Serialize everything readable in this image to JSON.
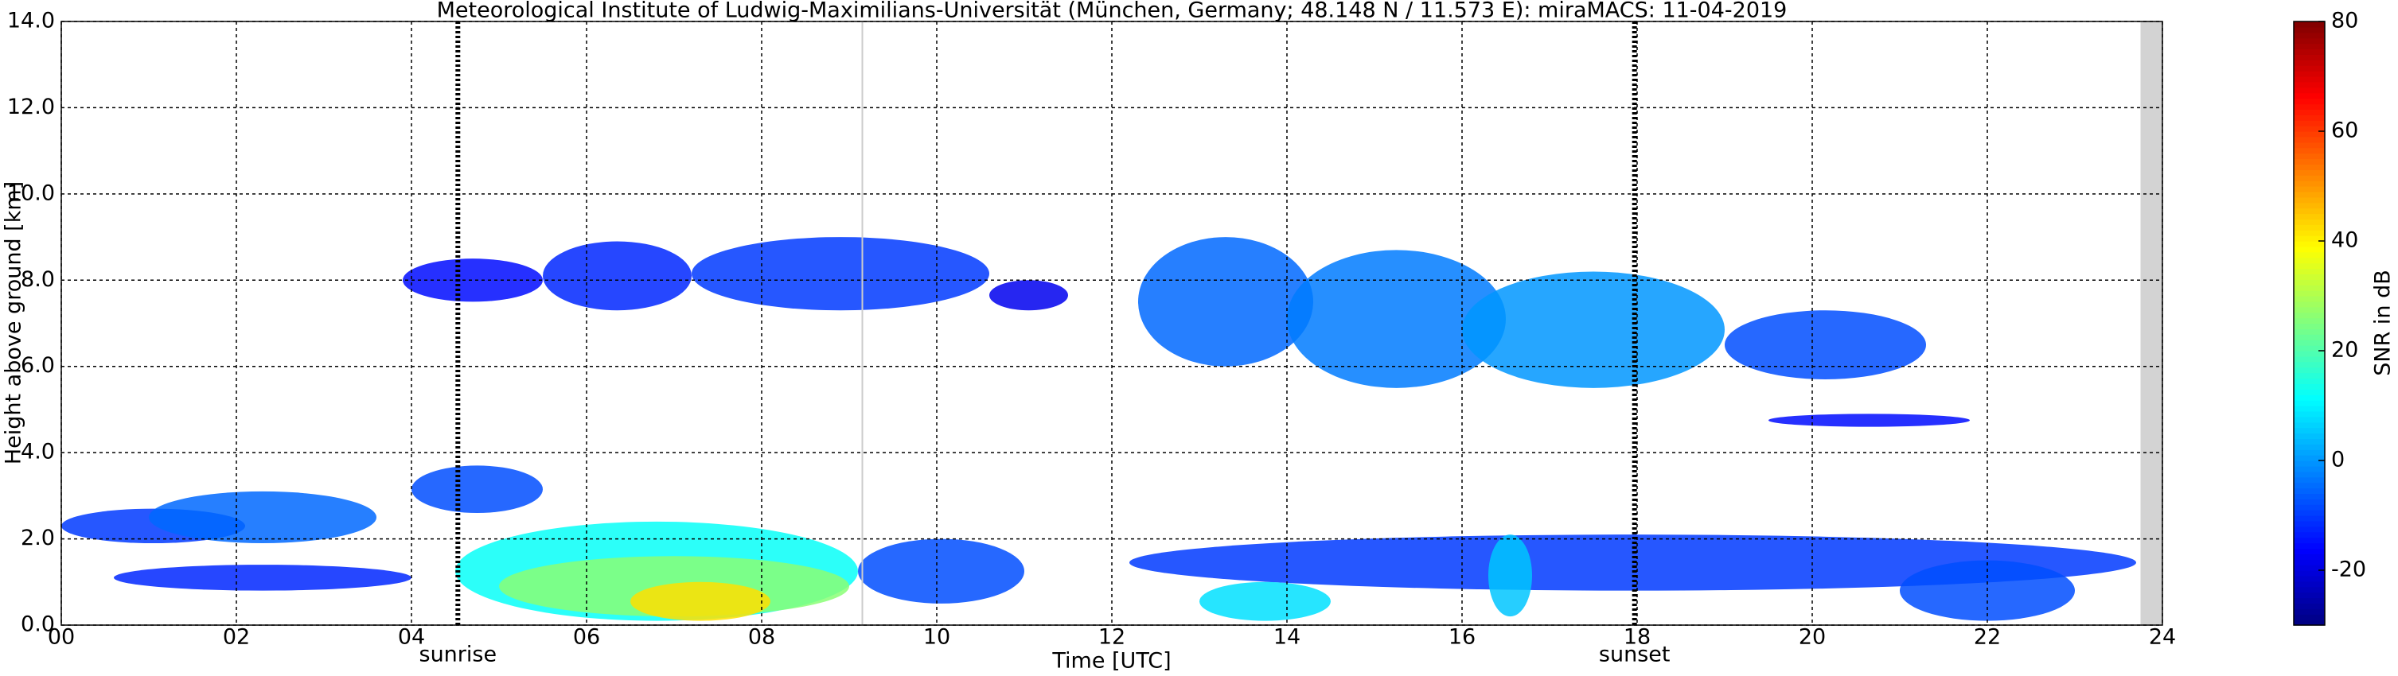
{
  "chart_data": {
    "type": "time-height",
    "title": "Meteorological Institute of Ludwig-Maximilians-Universität (München, Germany; 48.148 N / 11.573 E):    miraMACS: 11-04-2019",
    "x_label": "Time [UTC]",
    "y_label": "Height above ground [km]",
    "colorbar_label": "SNR in dB",
    "colormap": "jet",
    "grid": true,
    "xlim": [
      0,
      24
    ],
    "xticks": [
      {
        "value": 0,
        "label": "00"
      },
      {
        "value": 2,
        "label": "02"
      },
      {
        "value": 4,
        "label": "04"
      },
      {
        "value": 6,
        "label": "06"
      },
      {
        "value": 8,
        "label": "08"
      },
      {
        "value": 10,
        "label": "10"
      },
      {
        "value": 12,
        "label": "12"
      },
      {
        "value": 14,
        "label": "14"
      },
      {
        "value": 16,
        "label": "16"
      },
      {
        "value": 18,
        "label": "18"
      },
      {
        "value": 20,
        "label": "20"
      },
      {
        "value": 22,
        "label": "22"
      },
      {
        "value": 24,
        "label": "24"
      }
    ],
    "ylim": [
      0,
      14
    ],
    "yticks": [
      {
        "value": 0,
        "label": "0.0"
      },
      {
        "value": 2,
        "label": "2.0"
      },
      {
        "value": 4,
        "label": "4.0"
      },
      {
        "value": 6,
        "label": "6.0"
      },
      {
        "value": 8,
        "label": "8.0"
      },
      {
        "value": 10,
        "label": "10.0"
      },
      {
        "value": 12,
        "label": "12.0"
      },
      {
        "value": 14,
        "label": "14.0"
      }
    ],
    "clim": [
      -30,
      80
    ],
    "cticks": [
      -20,
      0,
      20,
      40,
      60,
      80
    ],
    "events": [
      {
        "label": "sunrise",
        "x": 4.53
      },
      {
        "label": "sunset",
        "x": 17.97
      }
    ],
    "no_data": [
      23.75,
      24
    ],
    "gap_line": 9.15,
    "echoes": [
      {
        "t": [
          0.0,
          2.1
        ],
        "h": [
          1.9,
          2.7
        ],
        "snr": -10
      },
      {
        "t": [
          1.0,
          3.6
        ],
        "h": [
          1.9,
          3.1
        ],
        "snr": -5
      },
      {
        "t": [
          0.6,
          4.0
        ],
        "h": [
          0.8,
          1.4
        ],
        "snr": -12
      },
      {
        "t": [
          4.0,
          5.5
        ],
        "h": [
          2.6,
          3.7
        ],
        "snr": -8
      },
      {
        "t": [
          4.5,
          9.1
        ],
        "h": [
          0.1,
          2.4
        ],
        "snr": 12
      },
      {
        "t": [
          5.0,
          9.0
        ],
        "h": [
          0.2,
          1.6
        ],
        "snr": 26
      },
      {
        "t": [
          6.5,
          8.1
        ],
        "h": [
          0.1,
          1.0
        ],
        "snr": 42
      },
      {
        "t": [
          3.9,
          5.5
        ],
        "h": [
          7.5,
          8.5
        ],
        "snr": -15
      },
      {
        "t": [
          5.5,
          7.2
        ],
        "h": [
          7.3,
          8.9
        ],
        "snr": -12
      },
      {
        "t": [
          7.2,
          10.6
        ],
        "h": [
          7.3,
          9.0
        ],
        "snr": -10
      },
      {
        "t": [
          10.6,
          11.5
        ],
        "h": [
          7.3,
          8.0
        ],
        "snr": -18
      },
      {
        "t": [
          12.3,
          14.3
        ],
        "h": [
          6.0,
          9.0
        ],
        "snr": -5
      },
      {
        "t": [
          14.0,
          16.5
        ],
        "h": [
          5.5,
          8.7
        ],
        "snr": -3
      },
      {
        "t": [
          16.0,
          19.0
        ],
        "h": [
          5.5,
          8.2
        ],
        "snr": 0
      },
      {
        "t": [
          19.0,
          21.3
        ],
        "h": [
          5.7,
          7.3
        ],
        "snr": -8
      },
      {
        "t": [
          19.5,
          21.8
        ],
        "h": [
          4.6,
          4.9
        ],
        "snr": -15
      },
      {
        "t": [
          12.2,
          23.7
        ],
        "h": [
          0.8,
          2.1
        ],
        "snr": -10
      },
      {
        "t": [
          13.0,
          14.5
        ],
        "h": [
          0.1,
          1.0
        ],
        "snr": 8
      },
      {
        "t": [
          21.0,
          23.0
        ],
        "h": [
          0.1,
          1.5
        ],
        "snr": -8
      },
      {
        "t": [
          16.3,
          16.8
        ],
        "h": [
          0.2,
          2.1
        ],
        "snr": 5
      },
      {
        "t": [
          9.1,
          11.0
        ],
        "h": [
          0.5,
          2.0
        ],
        "snr": -8
      }
    ]
  }
}
